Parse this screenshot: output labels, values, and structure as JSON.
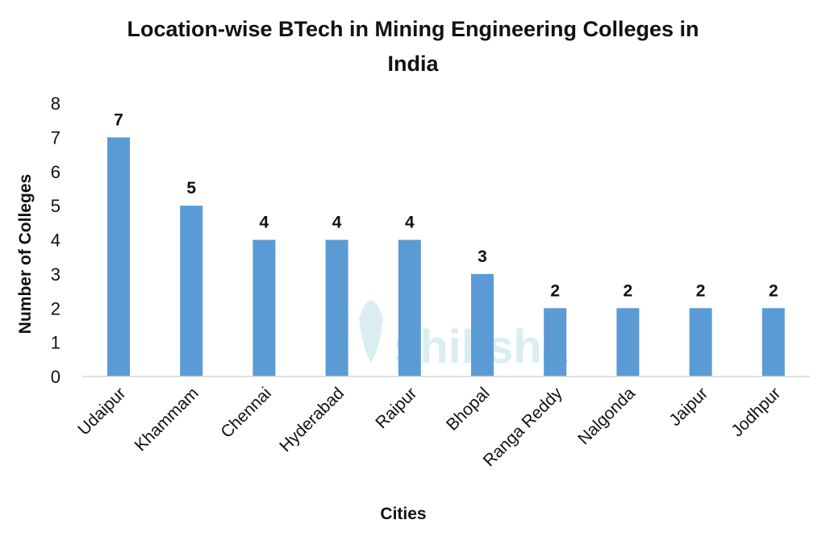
{
  "chart_data": {
    "type": "bar",
    "title_lines": [
      "Location-wise BTech in Mining Engineering Colleges in",
      "India"
    ],
    "xlabel": "Cities",
    "ylabel": "Number of Colleges",
    "categories": [
      "Udaipur",
      "Khammam",
      "Chennai",
      "Hyderabad",
      "Raipur",
      "Bhopal",
      "Ranga Reddy",
      "Nalgonda",
      "Jaipur",
      "Jodhpur"
    ],
    "values": [
      7,
      5,
      4,
      4,
      4,
      3,
      2,
      2,
      2,
      2
    ],
    "ylim": [
      0,
      8
    ],
    "yticks": [
      0,
      1,
      2,
      3,
      4,
      5,
      6,
      7,
      8
    ],
    "grid": false,
    "data_labels": true,
    "bar_color": "#5b9bd5",
    "watermark": "shiksha"
  }
}
